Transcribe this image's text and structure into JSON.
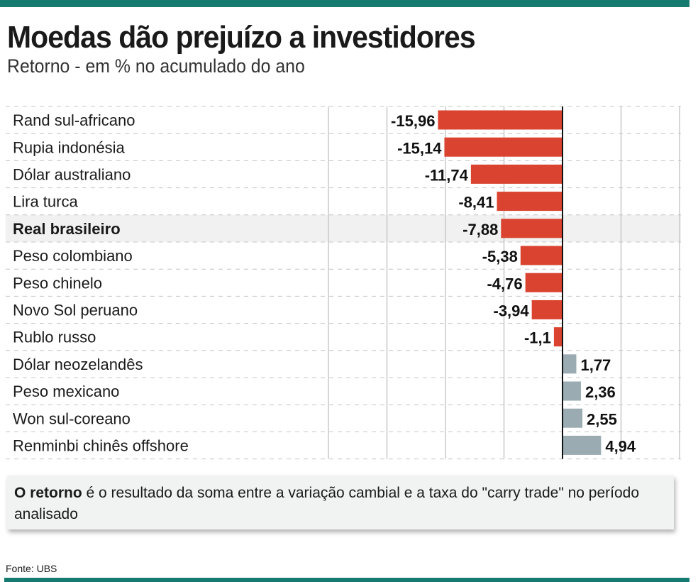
{
  "title": "Moedas dão prejuízo a investidores",
  "subtitle": "Retorno - em % no acumulado do ano",
  "note": {
    "bold": "O retorno",
    "text": " é o resultado da soma entre a variação cambial e a taxa do \"carry trade\" no período analisado"
  },
  "source": "Fonte:  UBS",
  "colors": {
    "negative": "#d9432f",
    "positive": "#9aabb2",
    "accent": "#157a70",
    "highlight_row": "#f1f1f1"
  },
  "chart_data": {
    "type": "bar",
    "orientation": "horizontal",
    "categories": [
      "Rand sul-africano",
      "Rupia indonésia",
      "Dólar australiano",
      "Lira turca",
      "Real brasileiro",
      "Peso colombiano",
      "Peso chinelo",
      "Novo Sol peruano",
      "Rublo russo",
      "Dólar neozelandês",
      "Peso mexicano",
      "Won sul-coreano",
      "Renminbi chinês offshore"
    ],
    "values": [
      -15.96,
      -15.14,
      -11.74,
      -8.41,
      -7.88,
      -5.38,
      -4.76,
      -3.94,
      -1.1,
      1.77,
      2.36,
      2.55,
      4.94
    ],
    "value_labels": [
      "-15,96",
      "-15,14",
      "-11,74",
      "-8,41",
      "-7,88",
      "-5,38",
      "-4,76",
      "-3,94",
      "-1,1",
      "1,77",
      "2,36",
      "2,55",
      "4,94"
    ],
    "highlight": "Real brasileiro",
    "xlim": [
      -30,
      15
    ],
    "grid": true
  }
}
